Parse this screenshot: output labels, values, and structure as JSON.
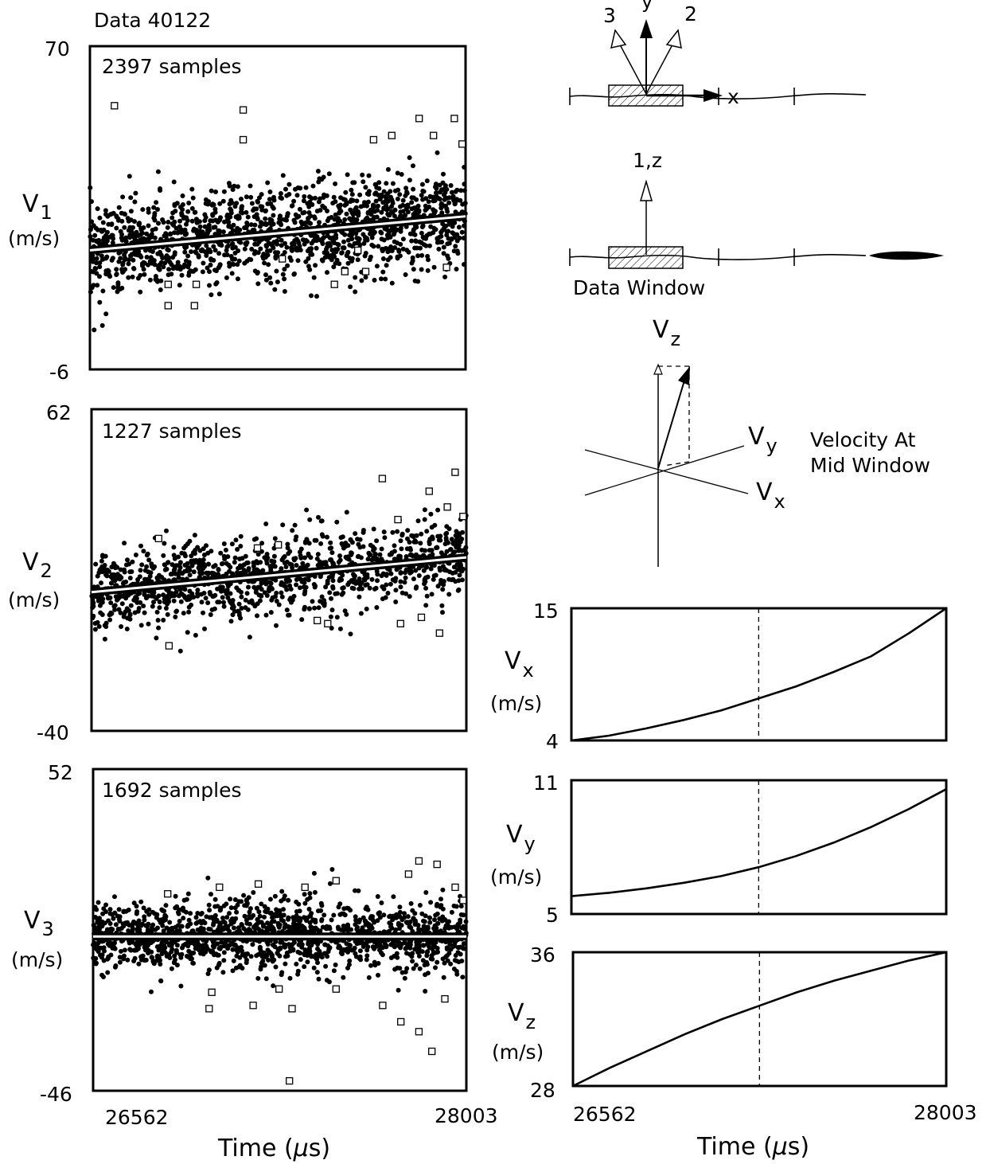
{
  "figure": {
    "dataset_label": "Data 40122",
    "time_unit_label": "Time (μs)",
    "time_prefix": "Time (",
    "time_mu": "μ",
    "time_suffix": "s)",
    "diagram": {
      "axis_y": "y",
      "axis_x": "x",
      "beam_3": "3",
      "beam_2": "2",
      "beam_1z": "1,z",
      "window_label": "Data Window",
      "vz_label": "V",
      "vz_sub": "z",
      "vy_label": "V",
      "vy_sub": "y",
      "vx_label": "V",
      "vx_sub": "x",
      "caption_line1": "Velocity At",
      "caption_line2": "Mid Window"
    }
  },
  "chart_data": [
    {
      "id": "v1",
      "type": "scatter",
      "samples_label": "2397 samples",
      "ylabel_main": "V",
      "ylabel_sub": "1",
      "ylabel_unit": "(m/s)",
      "xlim": [
        26562,
        28003
      ],
      "ylim": [
        -6,
        70
      ],
      "ytick_labels": [
        "70",
        "-6"
      ],
      "fit_line": {
        "start": [
          26562,
          22
        ],
        "end": [
          28003,
          30
        ]
      },
      "point_cloud": {
        "count": 2397,
        "spread": 6
      },
      "outliers": [
        [
          26656,
          56
        ],
        [
          26862,
          9
        ],
        [
          26963,
          9
        ],
        [
          26862,
          14
        ],
        [
          26970,
          14
        ],
        [
          27150,
          55
        ],
        [
          27150,
          48
        ],
        [
          27300,
          20
        ],
        [
          27500,
          14
        ],
        [
          27650,
          48
        ],
        [
          27720,
          49
        ],
        [
          27825,
          53
        ],
        [
          27880,
          49
        ],
        [
          27960,
          53
        ],
        [
          27990,
          47
        ],
        [
          27590,
          22
        ],
        [
          27930,
          18
        ],
        [
          27620,
          17
        ],
        [
          27540,
          17
        ]
      ]
    },
    {
      "id": "v2",
      "type": "scatter",
      "samples_label": "1227 samples",
      "ylabel_main": "V",
      "ylabel_sub": "2",
      "ylabel_unit": "(m/s)",
      "xlim": [
        26562,
        28003
      ],
      "ylim": [
        -40,
        62
      ],
      "ytick_labels": [
        "62",
        "-40"
      ],
      "fit_line": {
        "start": [
          26562,
          4
        ],
        "end": [
          28003,
          15
        ]
      },
      "point_cloud": {
        "count": 1227,
        "spread": 7
      },
      "outliers": [
        [
          26820,
          21
        ],
        [
          26860,
          -13
        ],
        [
          27200,
          18
        ],
        [
          27280,
          19
        ],
        [
          27430,
          -5
        ],
        [
          27470,
          -6
        ],
        [
          27750,
          -6
        ],
        [
          27860,
          36
        ],
        [
          27930,
          31
        ],
        [
          27960,
          42
        ],
        [
          27900,
          -9
        ],
        [
          27830,
          -4
        ],
        [
          27740,
          27
        ],
        [
          27680,
          40
        ],
        [
          27990,
          28
        ]
      ]
    },
    {
      "id": "v3",
      "type": "scatter",
      "samples_label": "1692 samples",
      "ylabel_main": "V",
      "ylabel_sub": "3",
      "ylabel_unit": "(m/s)",
      "xlim": [
        26562,
        28003
      ],
      "ylim": [
        -46,
        52
      ],
      "ytick_labels": [
        "52",
        "-46"
      ],
      "fit_line": {
        "start": [
          26562,
          1
        ],
        "end": [
          28003,
          1
        ]
      },
      "point_cloud": {
        "count": 1692,
        "spread": 6
      },
      "outliers": [
        [
          26850,
          14
        ],
        [
          27050,
          16
        ],
        [
          27200,
          17
        ],
        [
          27380,
          16
        ],
        [
          27500,
          18
        ],
        [
          27780,
          20
        ],
        [
          27820,
          24
        ],
        [
          27890,
          23
        ],
        [
          27960,
          16
        ],
        [
          27990,
          12
        ],
        [
          27010,
          -21
        ],
        [
          27020,
          -16
        ],
        [
          27180,
          -20
        ],
        [
          27280,
          -15
        ],
        [
          27330,
          -21
        ],
        [
          27680,
          -20
        ],
        [
          27750,
          -25
        ],
        [
          27820,
          -28
        ],
        [
          27870,
          -34
        ],
        [
          27320,
          -43
        ],
        [
          27500,
          -15
        ],
        [
          27920,
          -18
        ]
      ]
    },
    {
      "id": "vx",
      "type": "line",
      "ylabel_main": "V",
      "ylabel_sub": "x",
      "ylabel_unit": "(m/s)",
      "xlim": [
        26562,
        28003
      ],
      "ylim": [
        4,
        15
      ],
      "ytick_labels": [
        "15",
        "4"
      ],
      "mid_window_marker": 27282,
      "x": [
        26562,
        26706,
        26850,
        26994,
        27138,
        27282,
        27426,
        27570,
        27714,
        27858,
        28003
      ],
      "y": [
        4.0,
        4.4,
        5.0,
        5.7,
        6.5,
        7.5,
        8.5,
        9.7,
        11.0,
        12.9,
        15.0
      ]
    },
    {
      "id": "vy",
      "type": "line",
      "ylabel_main": "V",
      "ylabel_sub": "y",
      "ylabel_unit": "(m/s)",
      "xlim": [
        26562,
        28003
      ],
      "ylim": [
        5,
        11
      ],
      "ytick_labels": [
        "11",
        "5"
      ],
      "mid_window_marker": 27282,
      "x": [
        26562,
        26706,
        26850,
        26994,
        27138,
        27282,
        27426,
        27570,
        27714,
        27858,
        28003
      ],
      "y": [
        5.8,
        5.95,
        6.15,
        6.4,
        6.7,
        7.1,
        7.6,
        8.2,
        8.9,
        9.7,
        10.6
      ]
    },
    {
      "id": "vz",
      "type": "line",
      "ylabel_main": "V",
      "ylabel_sub": "z",
      "ylabel_unit": "(m/s)",
      "xlim": [
        26562,
        28003
      ],
      "ylim": [
        28,
        36
      ],
      "ytick_labels": [
        "36",
        "28"
      ],
      "mid_window_marker": 27282,
      "x": [
        26562,
        26706,
        26850,
        26994,
        27138,
        27282,
        27426,
        27570,
        27714,
        27858,
        28003
      ],
      "y": [
        28.0,
        29.1,
        30.1,
        31.1,
        32.0,
        32.8,
        33.6,
        34.3,
        34.9,
        35.5,
        36.0
      ]
    }
  ],
  "x_axis": {
    "tick_start": "26562",
    "tick_end": "28003"
  }
}
